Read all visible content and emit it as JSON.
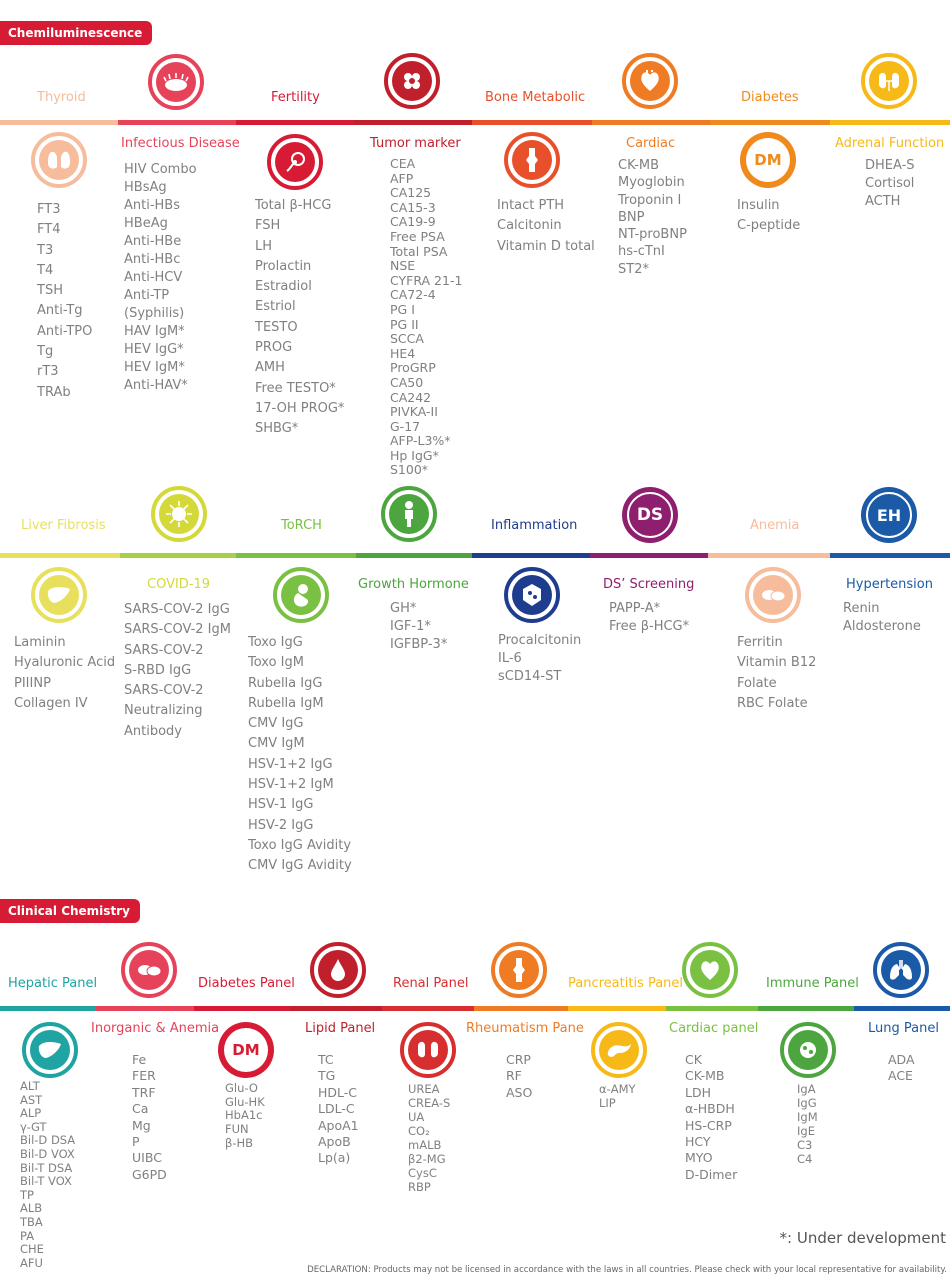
{
  "tags": {
    "chemi": "Chemiluminescence",
    "clinical": "Clinical Chemistry"
  },
  "colors": {
    "red": "#d71b34",
    "peach": "#f6bc9b",
    "pinkred": "#e6435a",
    "crimson": "#c0202c",
    "orangered": "#e8502b",
    "orange": "#ef7c24",
    "amber": "#f08a1c",
    "yellow": "#f7b918",
    "paleYellow": "#e8e05c",
    "green": "#7ac143",
    "darkgreen": "#4da53f",
    "navy": "#1f3d8f",
    "purple": "#8e1f6f",
    "blue": "#1b5aa6",
    "teal": "#1fa3a3",
    "gray": "#808080"
  },
  "sec1": {
    "thyroid": {
      "title": "Thyroid",
      "items": [
        "FT3",
        "FT4",
        "T3",
        "T4",
        "TSH",
        "Anti-Tg",
        "Anti-TPO",
        "Tg",
        "rT3",
        "TRAb"
      ]
    },
    "infectious": {
      "title": "Infectious Disease",
      "items": [
        "HIV Combo",
        "HBsAg",
        "Anti-HBs",
        "HBeAg",
        "Anti-HBe",
        "Anti-HBc",
        "Anti-HCV",
        "Anti-TP",
        "(Syphilis)",
        "HAV IgM*",
        "HEV IgG*",
        "HEV IgM*",
        "Anti-HAV*"
      ]
    },
    "fertility": {
      "title": "Fertility",
      "items": [
        "Total  β-HCG",
        "FSH",
        "LH",
        "Prolactin",
        "Estradiol",
        "Estriol",
        "TESTO",
        "PROG",
        "AMH",
        "Free TESTO*",
        "17-OH PROG*",
        "SHBG*"
      ]
    },
    "tumor": {
      "title": "Tumor marker",
      "items": [
        "CEA",
        "AFP",
        "CA125",
        "CA15-3",
        "CA19-9",
        "Free PSA",
        "Total PSA",
        "NSE",
        "CYFRA 21-1",
        "CA72-4",
        "PG I",
        "PG II",
        "SCCA",
        "HE4",
        "ProGRP",
        "CA50",
        "CA242",
        "PIVKA-II",
        "G-17",
        "AFP-L3%*",
        "Hp IgG*",
        "S100*"
      ]
    },
    "bone": {
      "title": "Bone Metabolic",
      "items": [
        "Intact PTH",
        "Calcitonin",
        "Vitamin D total"
      ]
    },
    "cardiac": {
      "title": "Cardiac",
      "items": [
        "CK-MB",
        "Myoglobin",
        "Troponin I",
        "BNP",
        "NT-proBNP",
        "hs-cTnI",
        "ST2*"
      ]
    },
    "diabetes": {
      "title": "Diabetes",
      "icon_text": "DM",
      "items": [
        "Insulin",
        "C-peptide"
      ]
    },
    "adrenal": {
      "title": "Adrenal Function",
      "items": [
        "DHEA-S",
        "Cortisol",
        "ACTH"
      ]
    }
  },
  "sec2": {
    "liver": {
      "title": "Liver Fibrosis",
      "items": [
        "Laminin",
        "Hyaluronic Acid",
        "PIIINP",
        "Collagen IV"
      ]
    },
    "covid": {
      "title": "COVID-19",
      "items": [
        "SARS-COV-2 IgG",
        "SARS-COV-2 IgM",
        "SARS-COV-2",
        "S-RBD IgG",
        "SARS-COV-2",
        "Neutralizing",
        "Antibody"
      ]
    },
    "torch": {
      "title": "ToRCH",
      "items": [
        "Toxo IgG",
        "Toxo IgM",
        "Rubella IgG",
        "Rubella IgM",
        "CMV IgG",
        "CMV IgM",
        "HSV-1+2 IgG",
        "HSV-1+2 IgM",
        "HSV-1 IgG",
        "HSV-2 IgG",
        "Toxo IgG Avidity",
        "CMV IgG Avidity"
      ]
    },
    "growth": {
      "title": "Growth Hormone",
      "items": [
        "GH*",
        "IGF-1*",
        "IGFBP-3*"
      ]
    },
    "inflammation": {
      "title": "Inflammation",
      "items": [
        "Procalcitonin",
        "IL-6",
        "sCD14-ST"
      ]
    },
    "ds": {
      "title": "DS’ Screening",
      "icon_text": "DS",
      "items": [
        "PAPP-A*",
        "Free β-HCG*"
      ]
    },
    "anemia": {
      "title": "Anemia",
      "items": [
        "Ferritin",
        "Vitamin B12",
        "Folate",
        "RBC Folate"
      ]
    },
    "hyper": {
      "title": "Hypertension",
      "icon_text": "EH",
      "items": [
        "Renin",
        "Aldosterone"
      ]
    }
  },
  "sec3": {
    "hepatic": {
      "title": "Hepatic Panel",
      "items": [
        "ALT",
        "AST",
        "ALP",
        "γ-GT",
        "Bil-D DSA",
        "Bil-D VOX",
        "Bil-T DSA",
        "Bil-T VOX",
        "TP",
        "ALB",
        "TBA",
        "PA",
        "CHE",
        "AFU"
      ]
    },
    "inorganic": {
      "title": "Inorganic & Anemia",
      "items": [
        "Fe",
        "FER",
        "TRF",
        "Ca",
        "Mg",
        "P",
        "UIBC",
        "G6PD"
      ]
    },
    "diabetesPanel": {
      "title": "Diabetes Panel",
      "icon_text": "DM",
      "items": [
        "Glu-O",
        "Glu-HK",
        "HbA1c",
        "FUN",
        "β-HB"
      ]
    },
    "lipid": {
      "title": "Lipid Panel",
      "items": [
        "TC",
        "TG",
        "HDL-C",
        "LDL-C",
        "ApoA1",
        "ApoB",
        "Lp(a)"
      ]
    },
    "renal": {
      "title": "Renal Panel",
      "items": [
        "UREA",
        "CREA-S",
        "UA",
        "CO₂",
        "mALB",
        "β2-MG",
        "CysC",
        "RBP"
      ]
    },
    "rheum": {
      "title": "Rheumatism Pane",
      "items": [
        "CRP",
        "RF",
        "ASO"
      ]
    },
    "pancreatitis": {
      "title": "Pancreatitis Panel",
      "items": [
        "α-AMY",
        "LIP"
      ]
    },
    "cardiacPanel": {
      "title": "Cardiac panel",
      "items": [
        "CK",
        "CK-MB",
        "LDH",
        "α-HBDH",
        "HS-CRP",
        "HCY",
        "MYO",
        "D-Dimer"
      ]
    },
    "immune": {
      "title": "Immune Panel",
      "items": [
        "IgA",
        "IgG",
        "IgM",
        "IgE",
        "C3",
        "C4"
      ]
    },
    "lung": {
      "title": "Lung Panel",
      "items": [
        "ADA",
        "ACE"
      ]
    }
  },
  "footer": {
    "note": "*: Under development",
    "declaration": "DECLARATION: Products may not be licensed in accordance with the laws in all countries. Please check with your local representative for availability."
  }
}
